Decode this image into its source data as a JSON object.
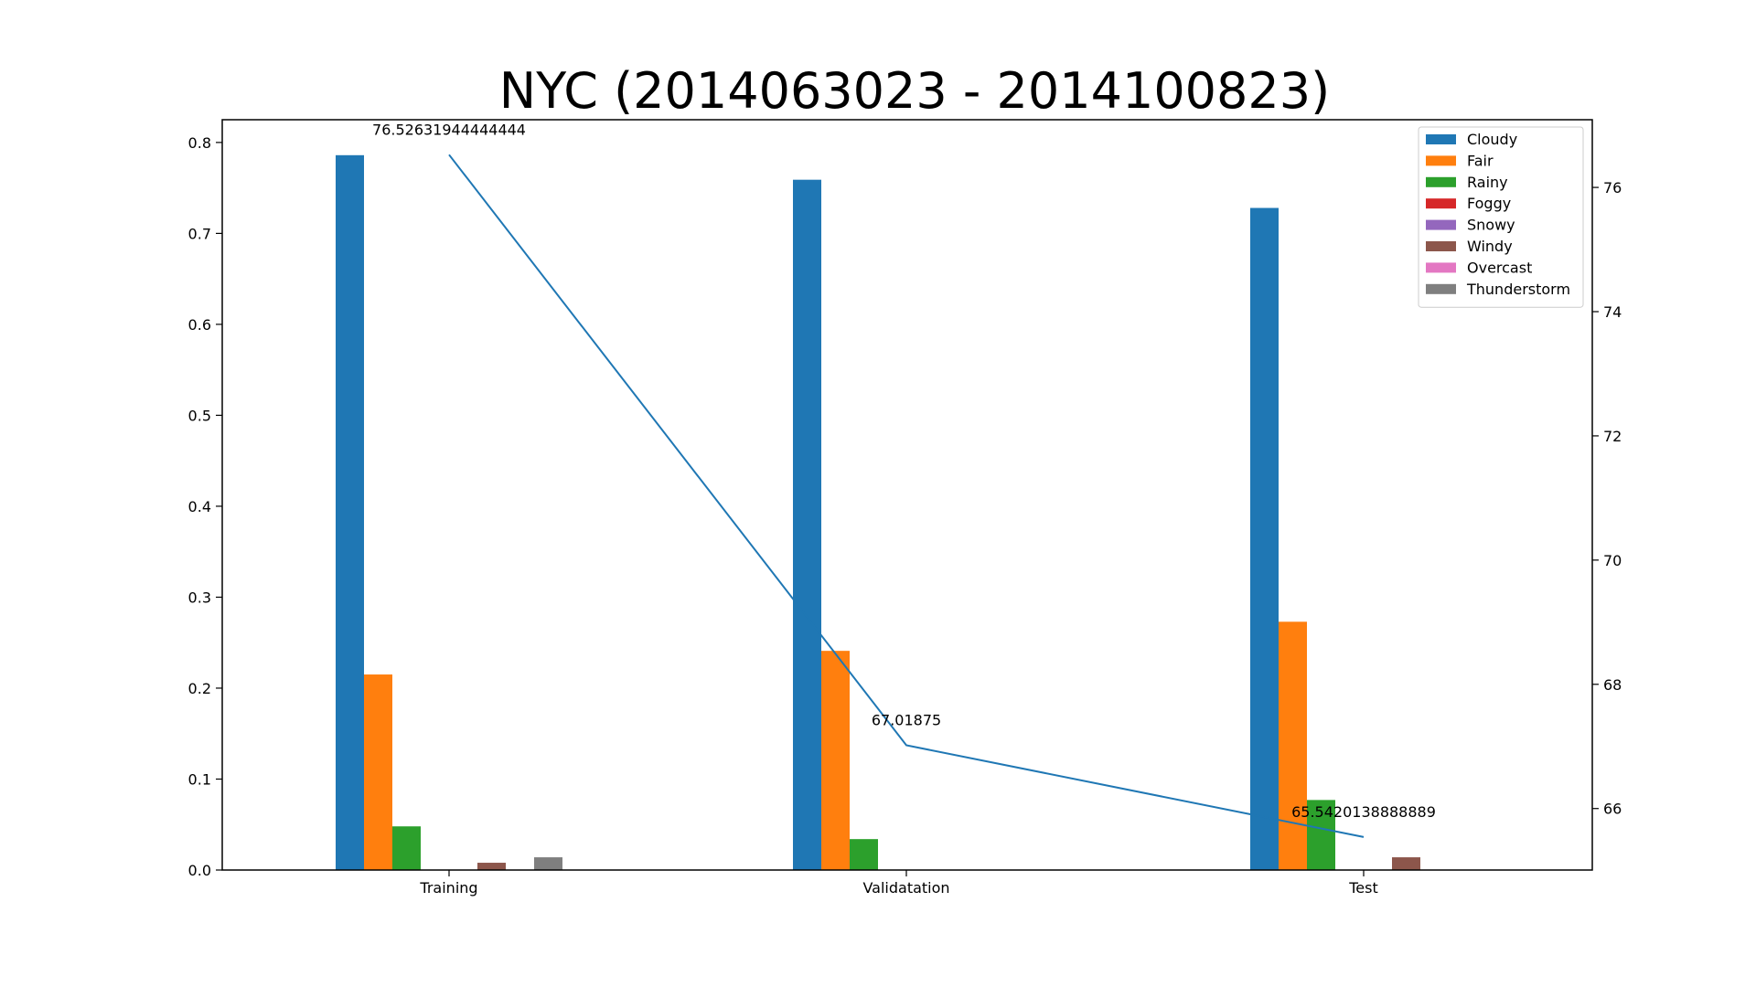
{
  "chart_data": {
    "type": "bar",
    "title": "NYC (2014063023 - 2014100823)",
    "categories": [
      "Training",
      "Validatation",
      "Test"
    ],
    "series": [
      {
        "name": "Cloudy",
        "color": "#1f77b4",
        "values": [
          0.786,
          0.759,
          0.728
        ]
      },
      {
        "name": "Fair",
        "color": "#ff7f0e",
        "values": [
          0.215,
          0.241,
          0.273
        ]
      },
      {
        "name": "Rainy",
        "color": "#2ca02c",
        "values": [
          0.048,
          0.034,
          0.077
        ]
      },
      {
        "name": "Foggy",
        "color": "#d62728",
        "values": [
          0,
          0,
          0
        ]
      },
      {
        "name": "Snowy",
        "color": "#9467bd",
        "values": [
          0,
          0,
          0
        ]
      },
      {
        "name": "Windy",
        "color": "#8c564b",
        "values": [
          0.008,
          0,
          0.014
        ]
      },
      {
        "name": "Overcast",
        "color": "#e377c2",
        "values": [
          0,
          0,
          0
        ]
      },
      {
        "name": "Thunderstorm",
        "color": "#7f7f7f",
        "values": [
          0.014,
          0,
          0
        ]
      }
    ],
    "ylim": [
      0,
      0.825
    ],
    "yticks": [
      "0.0",
      "0.1",
      "0.2",
      "0.3",
      "0.4",
      "0.5",
      "0.6",
      "0.7",
      "0.8"
    ],
    "line": {
      "color": "#1f77b4",
      "values": [
        76.52631944444444,
        67.01875,
        65.5420138888889
      ],
      "labels": [
        "76.52631944444444",
        "67.01875",
        "65.5420138888889"
      ]
    },
    "y2lim": [
      65.01,
      77.09
    ],
    "y2ticks": [
      "66",
      "68",
      "70",
      "72",
      "74",
      "76"
    ],
    "legend": "top-right",
    "grid": false
  }
}
